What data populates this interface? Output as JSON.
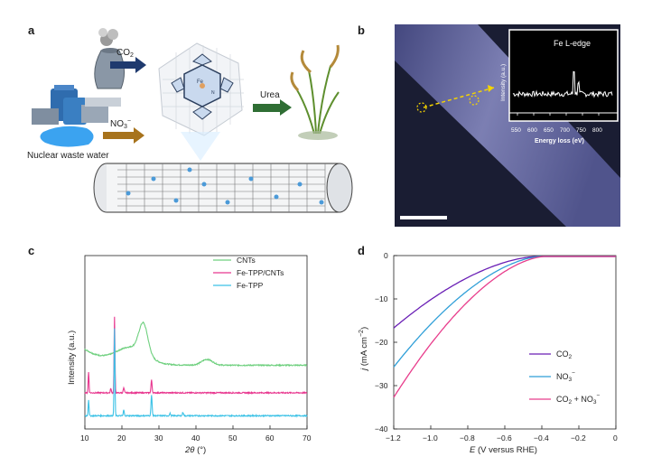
{
  "panels": {
    "a": {
      "label": "a",
      "co2": "CO",
      "co2_sub": "2",
      "no3": "NO",
      "no3_sub": "3",
      "no3_sup": "−",
      "urea": "Urea",
      "waste": "Nuclear waste water",
      "fe": "Fe",
      "n": "N"
    },
    "b": {
      "label": "b",
      "inset_title": "Fe L-edge",
      "inset_ylabel": "Intensity (a.u.)",
      "inset_xlabel": "Energy loss (eV)",
      "inset_ticks": [
        "550",
        "600",
        "650",
        "700",
        "750",
        "800"
      ]
    },
    "c": {
      "label": "c"
    },
    "d": {
      "label": "d"
    }
  },
  "colors": {
    "cnts": "#6fd07f",
    "fetpp_cnts": "#e8378f",
    "fetpp": "#3cc2e6",
    "co2": "#6a1fb5",
    "no3": "#2f9fd8",
    "co2_no3": "#e83d8c",
    "micrograph": "#1a1d33",
    "arrow_navy": "#1f3a6e",
    "arrow_brown": "#a7731c",
    "arrow_green": "#2f6e34"
  },
  "chart_data": [
    {
      "type": "line",
      "panel": "c",
      "xlabel": "2θ (°)",
      "xlabel_main": "2",
      "xlabel_theta": "θ",
      "xlabel_unit": " (°)",
      "ylabel": "Intensity (a.u.)",
      "xlim": [
        10,
        70
      ],
      "x_ticks": [
        "10",
        "20",
        "30",
        "40",
        "50",
        "60",
        "70"
      ],
      "legend_position": "top-right",
      "series": [
        {
          "name": "CNTs",
          "offset": 2.2,
          "peaks": [
            [
              25.8,
              1.3,
              1.2
            ],
            [
              22.5,
              0.7,
              4.0
            ],
            [
              43.0,
              0.25,
              1.5
            ]
          ]
        },
        {
          "name": "Fe-TPP/CNTs",
          "offset": 1.0,
          "peaks": [
            [
              18.0,
              3.3,
              0.12
            ],
            [
              11.0,
              0.9,
              0.12
            ],
            [
              28.0,
              0.55,
              0.15
            ],
            [
              20.5,
              0.2,
              0.15
            ],
            [
              17.0,
              0.2,
              0.12
            ]
          ]
        },
        {
          "name": "Fe-TPP",
          "offset": 0.0,
          "peaks": [
            [
              18.0,
              3.8,
              0.12
            ],
            [
              11.0,
              0.7,
              0.12
            ],
            [
              28.0,
              0.9,
              0.15
            ],
            [
              20.5,
              0.25,
              0.12
            ],
            [
              36.5,
              0.15,
              0.15
            ],
            [
              33.0,
              0.1,
              0.15
            ]
          ]
        }
      ]
    },
    {
      "type": "line",
      "panel": "d",
      "xlabel": "E (V versus RHE)",
      "xlabel_main": "E",
      "xlabel_unit": " (V versus RHE)",
      "ylabel": "j (mA cm⁻²)",
      "ylabel_main": "j",
      "ylabel_unit": " (mA cm",
      "ylabel_sup": "−2",
      "ylabel_end": ")",
      "xlim": [
        -1.2,
        0
      ],
      "ylim": [
        -40,
        0
      ],
      "x_ticks": [
        "−1.2",
        "−1.0",
        "−0.8",
        "−0.6",
        "−0.4",
        "−0.2",
        "0"
      ],
      "y_ticks": [
        "0",
        "−10",
        "−20",
        "−30",
        "−40"
      ],
      "legend_position": "bottom-right",
      "series": [
        {
          "name": "CO2",
          "name_main": "CO",
          "name_sub": "2",
          "onset": -0.42,
          "j_at_min": -16.5
        },
        {
          "name": "NO3−",
          "name_main": "NO",
          "name_sub": "3",
          "name_sup": "−",
          "onset": -0.4,
          "j_at_min": -25.5
        },
        {
          "name": "CO2 + NO3−",
          "name_main": "CO",
          "name_sub": "2",
          "name_mid": " + NO",
          "name_sub2": "3",
          "name_sup": "−",
          "onset": -0.38,
          "j_at_min": -32.5
        }
      ]
    }
  ]
}
